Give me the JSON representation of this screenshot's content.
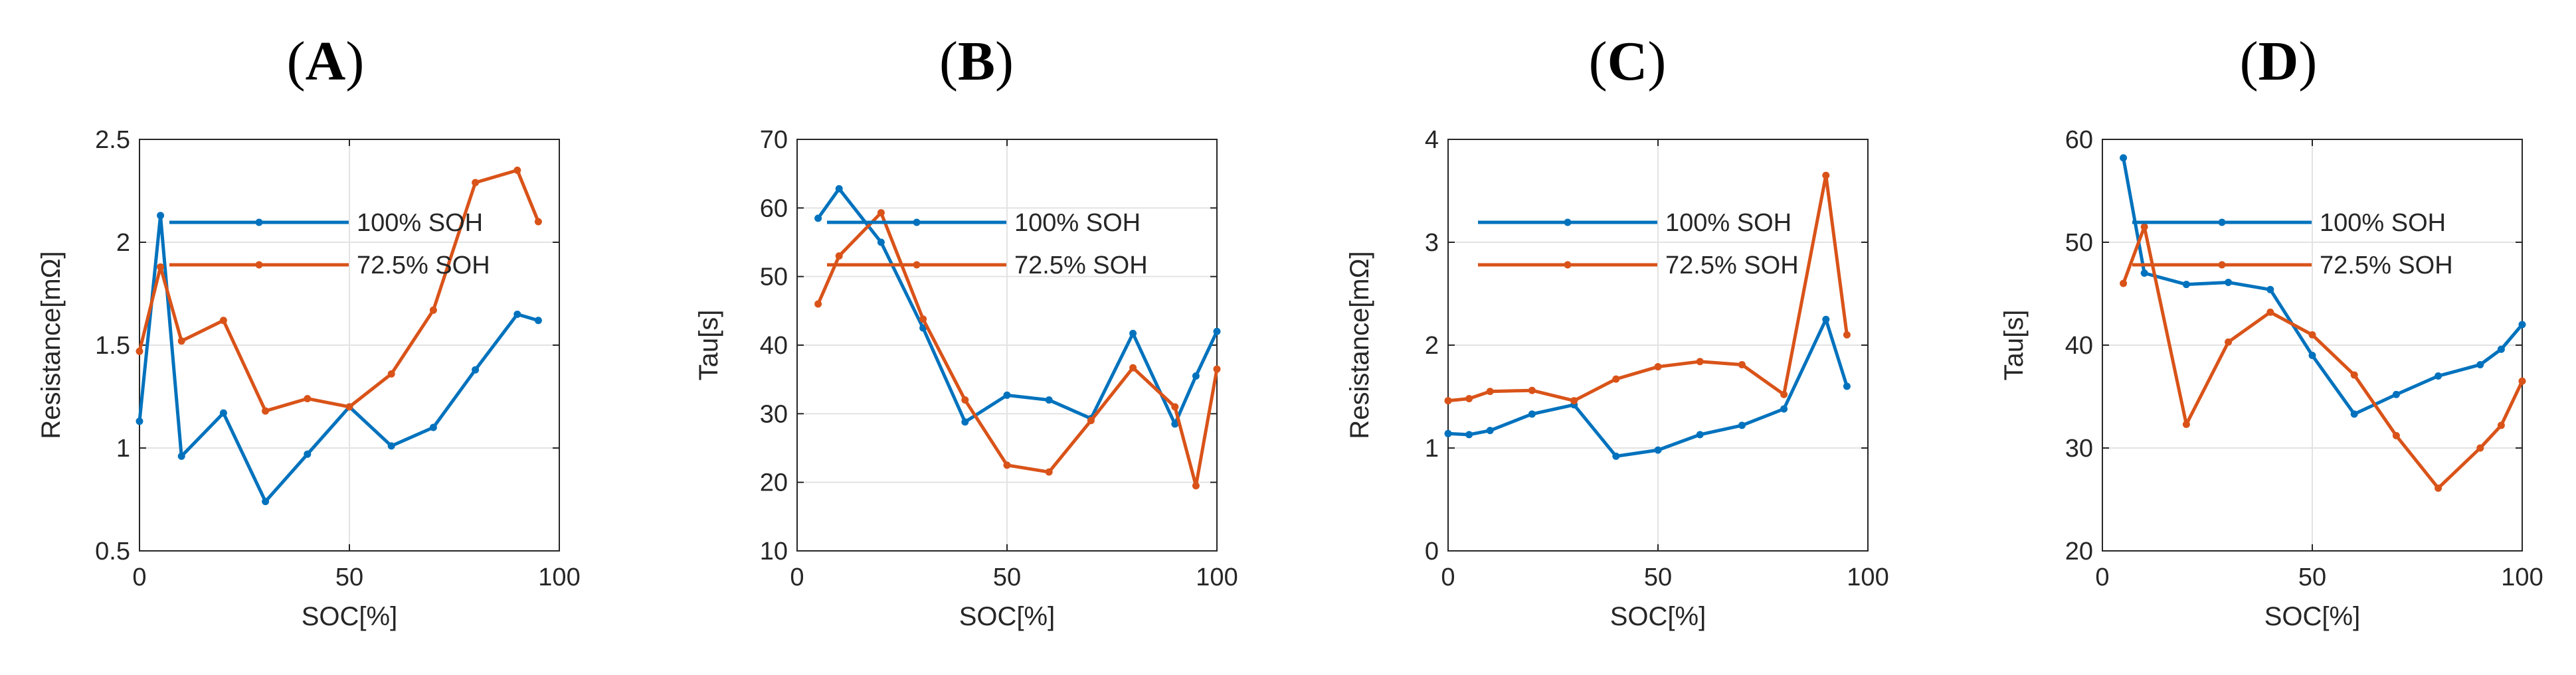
{
  "colors": {
    "blue": "#0072bd",
    "orange": "#d95319",
    "grid": "#e3e3e3",
    "axis": "#262626"
  },
  "chart_data": [
    {
      "type": "line",
      "panel": "(A)",
      "panel_letter": "A",
      "xlabel": "SOC[%]",
      "ylabel": "Resistance[mΩ]",
      "xlim": [
        0,
        100
      ],
      "ylim": [
        0.5,
        2.5
      ],
      "xticks": [
        0,
        50,
        100
      ],
      "yticks": [
        0.5,
        1,
        1.5,
        2,
        2.5
      ],
      "xtick_labels": [
        "0",
        "50",
        "100"
      ],
      "ytick_labels": [
        "0.5",
        "1",
        "1.5",
        "2",
        "2.5"
      ],
      "grid": true,
      "legend_position": "top-center",
      "series": [
        {
          "name": "100% SOH",
          "color": "blue",
          "x": [
            0,
            5,
            10,
            20,
            30,
            40,
            50,
            60,
            70,
            80,
            90,
            95
          ],
          "y": [
            1.13,
            2.13,
            0.96,
            1.17,
            0.74,
            0.97,
            1.2,
            1.01,
            1.1,
            1.38,
            1.65,
            1.62
          ]
        },
        {
          "name": "72.5% SOH",
          "color": "orange",
          "x": [
            0,
            5,
            10,
            20,
            30,
            40,
            50,
            60,
            70,
            80,
            90,
            95
          ],
          "y": [
            1.47,
            1.88,
            1.52,
            1.62,
            1.18,
            1.24,
            1.2,
            1.36,
            1.67,
            2.29,
            2.35,
            2.1
          ]
        }
      ]
    },
    {
      "type": "line",
      "panel": "(B)",
      "panel_letter": "B",
      "xlabel": "SOC[%]",
      "ylabel": "Tau[s]",
      "xlim": [
        0,
        100
      ],
      "ylim": [
        10,
        70
      ],
      "xticks": [
        0,
        50,
        100
      ],
      "yticks": [
        10,
        20,
        30,
        40,
        50,
        60,
        70
      ],
      "xtick_labels": [
        "0",
        "50",
        "100"
      ],
      "ytick_labels": [
        "10",
        "20",
        "30",
        "40",
        "50",
        "60",
        "70"
      ],
      "grid": true,
      "legend_position": "top-center",
      "series": [
        {
          "name": "100% SOH",
          "color": "blue",
          "x": [
            5,
            10,
            20,
            30,
            40,
            50,
            60,
            70,
            80,
            90,
            95,
            100
          ],
          "y": [
            58.5,
            62.8,
            55,
            42.5,
            28.8,
            32.7,
            32,
            29.3,
            41.7,
            28.5,
            35.5,
            42
          ]
        },
        {
          "name": "72.5% SOH",
          "color": "orange",
          "x": [
            5,
            10,
            20,
            30,
            40,
            50,
            60,
            70,
            80,
            90,
            95,
            100
          ],
          "y": [
            46,
            53,
            59.3,
            43.8,
            32,
            22.5,
            21.5,
            29,
            36.7,
            31,
            19.5,
            36.5
          ]
        }
      ]
    },
    {
      "type": "line",
      "panel": "(C)",
      "panel_letter": "C",
      "xlabel": "SOC[%]",
      "ylabel": "Resistance[mΩ]",
      "xlim": [
        0,
        100
      ],
      "ylim": [
        0,
        4
      ],
      "xticks": [
        0,
        50,
        100
      ],
      "yticks": [
        0,
        1,
        2,
        3,
        4
      ],
      "xtick_labels": [
        "0",
        "50",
        "100"
      ],
      "ytick_labels": [
        "0",
        "1",
        "2",
        "3",
        "4"
      ],
      "grid": true,
      "legend_position": "top-center",
      "series": [
        {
          "name": "100% SOH",
          "color": "blue",
          "x": [
            0,
            5,
            10,
            20,
            30,
            40,
            50,
            60,
            70,
            80,
            90,
            95
          ],
          "y": [
            1.14,
            1.13,
            1.17,
            1.33,
            1.42,
            0.92,
            0.98,
            1.13,
            1.22,
            1.38,
            2.25,
            1.6
          ]
        },
        {
          "name": "72.5% SOH",
          "color": "orange",
          "x": [
            0,
            5,
            10,
            20,
            30,
            40,
            50,
            60,
            70,
            80,
            90,
            95
          ],
          "y": [
            1.46,
            1.48,
            1.55,
            1.56,
            1.46,
            1.67,
            1.79,
            1.84,
            1.81,
            1.52,
            3.65,
            2.1
          ]
        }
      ]
    },
    {
      "type": "line",
      "panel": "(D)",
      "panel_letter": "D",
      "xlabel": "SOC[%]",
      "ylabel": "Tau[s]",
      "xlim": [
        0,
        100
      ],
      "ylim": [
        20,
        60
      ],
      "xticks": [
        0,
        50,
        100
      ],
      "yticks": [
        20,
        30,
        40,
        50,
        60
      ],
      "xtick_labels": [
        "0",
        "50",
        "100"
      ],
      "ytick_labels": [
        "20",
        "30",
        "40",
        "50",
        "60"
      ],
      "grid": true,
      "legend_position": "top-center",
      "series": [
        {
          "name": "100% SOH",
          "color": "blue",
          "x": [
            5,
            10,
            20,
            30,
            40,
            50,
            60,
            70,
            80,
            90,
            95,
            100
          ],
          "y": [
            58.2,
            47,
            45.9,
            46.1,
            45.4,
            39,
            33.3,
            35.2,
            37,
            38.1,
            39.6,
            42
          ]
        },
        {
          "name": "72.5% SOH",
          "color": "orange",
          "x": [
            5,
            10,
            20,
            30,
            40,
            50,
            60,
            70,
            80,
            90,
            95,
            100
          ],
          "y": [
            46,
            51.5,
            32.3,
            40.3,
            43.2,
            41,
            37.1,
            31.2,
            26.1,
            30,
            32.2,
            36.5
          ]
        }
      ]
    }
  ]
}
